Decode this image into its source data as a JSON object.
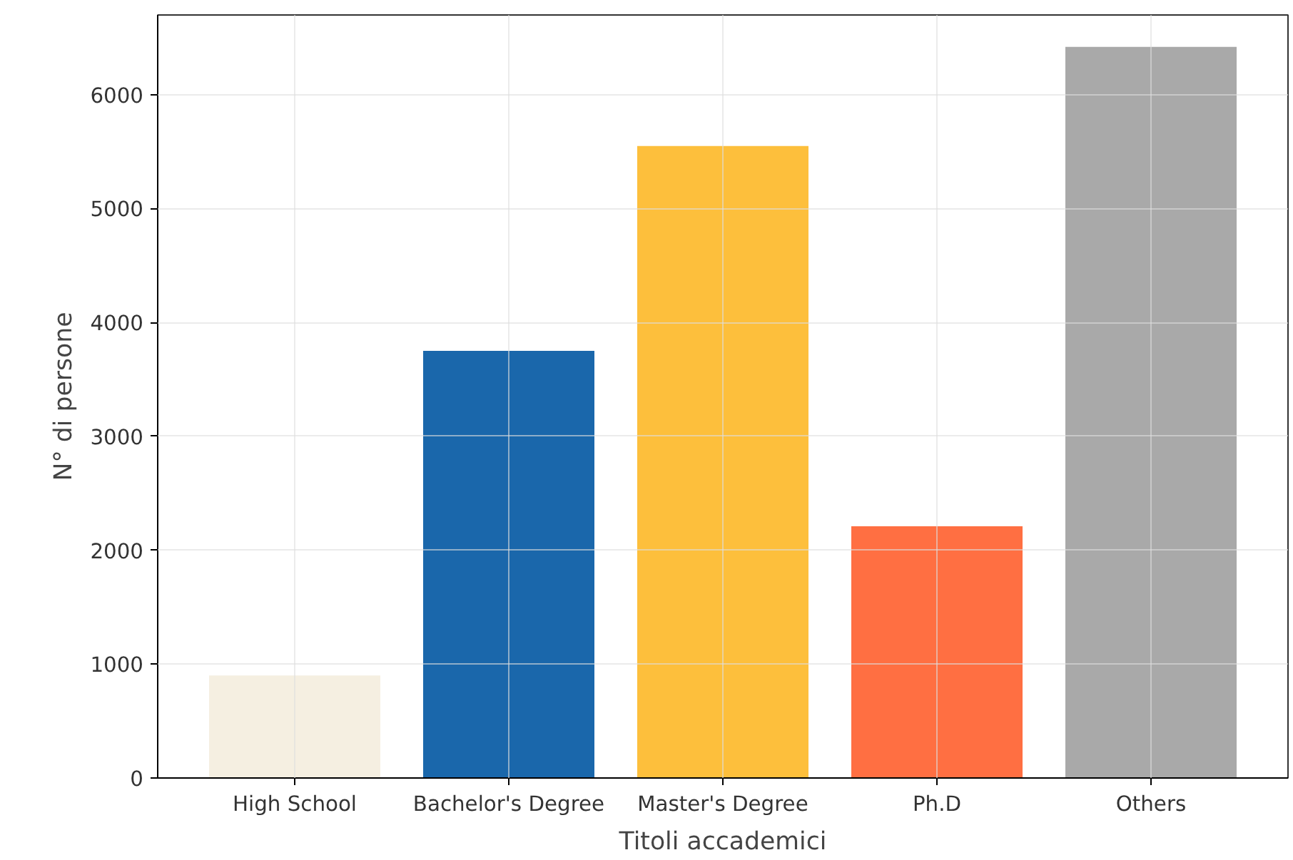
{
  "chart_data": {
    "type": "bar",
    "xlabel": "Titoli accademici",
    "ylabel": "N° di persone",
    "categories": [
      "High School",
      "Bachelor's Degree",
      "Master's Degree",
      "Ph.D",
      "Others"
    ],
    "values": [
      900,
      3750,
      5550,
      2210,
      6420
    ],
    "colors": [
      "#f5efe1",
      "#1a67ab",
      "#fdbf3c",
      "#ff6f42",
      "#a9a9a9"
    ],
    "ylim": [
      0,
      6700
    ],
    "yticks": [
      0,
      1000,
      2000,
      3000,
      4000,
      5000,
      6000
    ],
    "grid": true
  }
}
